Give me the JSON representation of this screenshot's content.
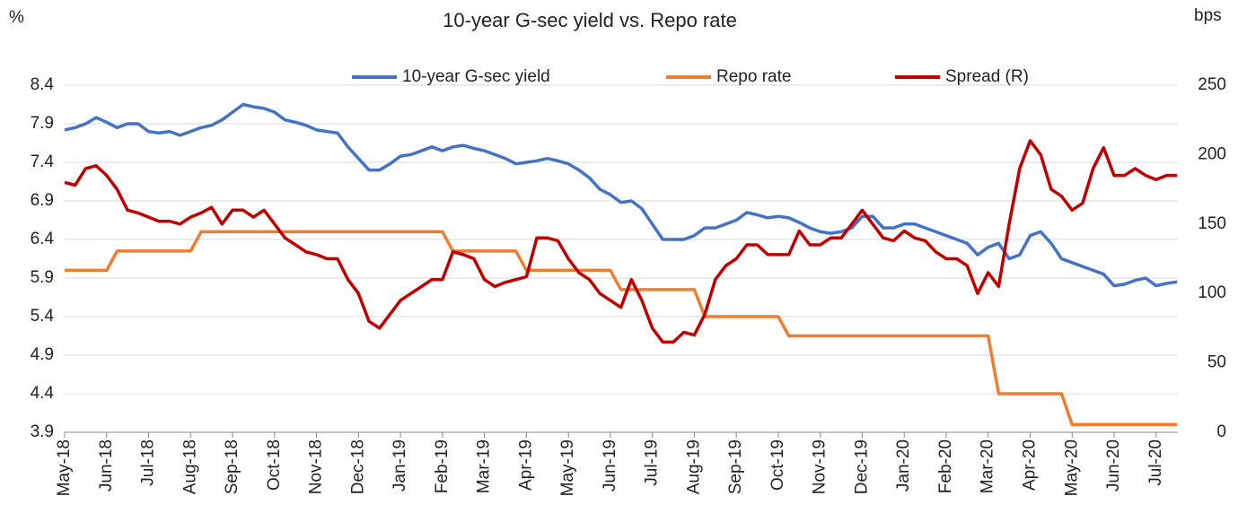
{
  "chart_data": {
    "type": "line",
    "title": "10-year G-sec yield vs. Repo rate",
    "ylabel": "%",
    "y2label": "bps",
    "categories": [
      "May-18",
      null,
      null,
      null,
      "Jun-18",
      null,
      null,
      null,
      "Jul-18",
      null,
      null,
      null,
      "Aug-18",
      null,
      null,
      null,
      "Sep-18",
      null,
      null,
      null,
      "Oct-18",
      null,
      null,
      null,
      "Nov-18",
      null,
      null,
      null,
      "Dec-18",
      null,
      null,
      null,
      "Jan-19",
      null,
      null,
      null,
      "Feb-19",
      null,
      null,
      null,
      "Mar-19",
      null,
      null,
      null,
      "Apr-19",
      null,
      null,
      null,
      "May-19",
      null,
      null,
      null,
      "Jun-19",
      null,
      null,
      null,
      "Jul-19",
      null,
      null,
      null,
      "Aug-19",
      null,
      null,
      null,
      "Sep-19",
      null,
      null,
      null,
      "Oct-19",
      null,
      null,
      null,
      "Nov-19",
      null,
      null,
      null,
      "Dec-19",
      null,
      null,
      null,
      "Jan-20",
      null,
      null,
      null,
      "Feb-20",
      null,
      null,
      null,
      "Mar-20",
      null,
      null,
      null,
      "Apr-20",
      null,
      null,
      null,
      "May-20",
      null,
      null,
      null,
      "Jun-20",
      null,
      null,
      null,
      "Jul-20",
      null,
      null
    ],
    "series": [
      {
        "name": "10-year G-sec yield",
        "color": "#4472c4",
        "values": [
          7.82,
          7.85,
          7.9,
          7.98,
          7.92,
          7.85,
          7.9,
          7.9,
          7.8,
          7.78,
          7.8,
          7.75,
          7.8,
          7.85,
          7.88,
          7.95,
          8.05,
          8.15,
          8.12,
          8.1,
          8.05,
          7.95,
          7.92,
          7.88,
          7.82,
          7.8,
          7.78,
          7.6,
          7.45,
          7.3,
          7.3,
          7.38,
          7.48,
          7.5,
          7.55,
          7.6,
          7.55,
          7.6,
          7.62,
          7.58,
          7.55,
          7.5,
          7.45,
          7.38,
          7.4,
          7.42,
          7.45,
          7.42,
          7.38,
          7.3,
          7.2,
          7.05,
          6.98,
          6.88,
          6.9,
          6.8,
          6.6,
          6.4,
          6.4,
          6.4,
          6.45,
          6.55,
          6.55,
          6.6,
          6.65,
          6.75,
          6.72,
          6.68,
          6.7,
          6.68,
          6.62,
          6.55,
          6.5,
          6.48,
          6.5,
          6.55,
          6.7,
          6.7,
          6.55,
          6.55,
          6.6,
          6.6,
          6.55,
          6.5,
          6.45,
          6.4,
          6.35,
          6.2,
          6.3,
          6.35,
          6.15,
          6.2,
          6.45,
          6.5,
          6.35,
          6.15,
          6.1,
          6.05,
          6.0,
          5.95,
          5.8,
          5.82,
          5.87,
          5.9,
          5.8,
          5.83,
          5.85
        ]
      },
      {
        "name": "Repo rate",
        "color": "#ed7d31",
        "values": [
          6.0,
          6.0,
          6.0,
          6.0,
          6.0,
          6.25,
          6.25,
          6.25,
          6.25,
          6.25,
          6.25,
          6.25,
          6.25,
          6.5,
          6.5,
          6.5,
          6.5,
          6.5,
          6.5,
          6.5,
          6.5,
          6.5,
          6.5,
          6.5,
          6.5,
          6.5,
          6.5,
          6.5,
          6.5,
          6.5,
          6.5,
          6.5,
          6.5,
          6.5,
          6.5,
          6.5,
          6.5,
          6.25,
          6.25,
          6.25,
          6.25,
          6.25,
          6.25,
          6.25,
          6.0,
          6.0,
          6.0,
          6.0,
          6.0,
          6.0,
          6.0,
          6.0,
          6.0,
          5.75,
          5.75,
          5.75,
          5.75,
          5.75,
          5.75,
          5.75,
          5.75,
          5.4,
          5.4,
          5.4,
          5.4,
          5.4,
          5.4,
          5.4,
          5.4,
          5.15,
          5.15,
          5.15,
          5.15,
          5.15,
          5.15,
          5.15,
          5.15,
          5.15,
          5.15,
          5.15,
          5.15,
          5.15,
          5.15,
          5.15,
          5.15,
          5.15,
          5.15,
          5.15,
          5.15,
          4.4,
          4.4,
          4.4,
          4.4,
          4.4,
          4.4,
          4.4,
          4.0,
          4.0,
          4.0,
          4.0,
          4.0,
          4.0,
          4.0,
          4.0,
          4.0,
          4.0,
          4.0
        ]
      },
      {
        "name": "Spread (R)",
        "color": "#c00000",
        "axis": "y2",
        "values": [
          180,
          178,
          190,
          192,
          185,
          175,
          160,
          158,
          155,
          152,
          152,
          150,
          155,
          158,
          162,
          150,
          160,
          160,
          155,
          160,
          150,
          140,
          135,
          130,
          128,
          125,
          125,
          110,
          100,
          80,
          75,
          85,
          95,
          100,
          105,
          110,
          110,
          130,
          128,
          125,
          110,
          105,
          108,
          110,
          112,
          140,
          140,
          138,
          125,
          115,
          110,
          100,
          95,
          90,
          110,
          95,
          75,
          65,
          65,
          72,
          70,
          85,
          110,
          120,
          125,
          135,
          135,
          128,
          128,
          128,
          145,
          135,
          135,
          140,
          140,
          150,
          160,
          150,
          140,
          138,
          145,
          140,
          138,
          130,
          125,
          125,
          120,
          100,
          115,
          105,
          150,
          190,
          210,
          200,
          175,
          170,
          160,
          165,
          190,
          205,
          185,
          185,
          190,
          185,
          182,
          185,
          185
        ]
      }
    ],
    "ylim": [
      3.9,
      8.4
    ],
    "yticks": [
      3.9,
      4.4,
      4.9,
      5.4,
      5.9,
      6.4,
      6.9,
      7.4,
      7.9,
      8.4
    ],
    "y2lim": [
      0,
      250
    ],
    "y2ticks": [
      0,
      50,
      100,
      150,
      200,
      250
    ],
    "grid": true,
    "legend": "top"
  }
}
